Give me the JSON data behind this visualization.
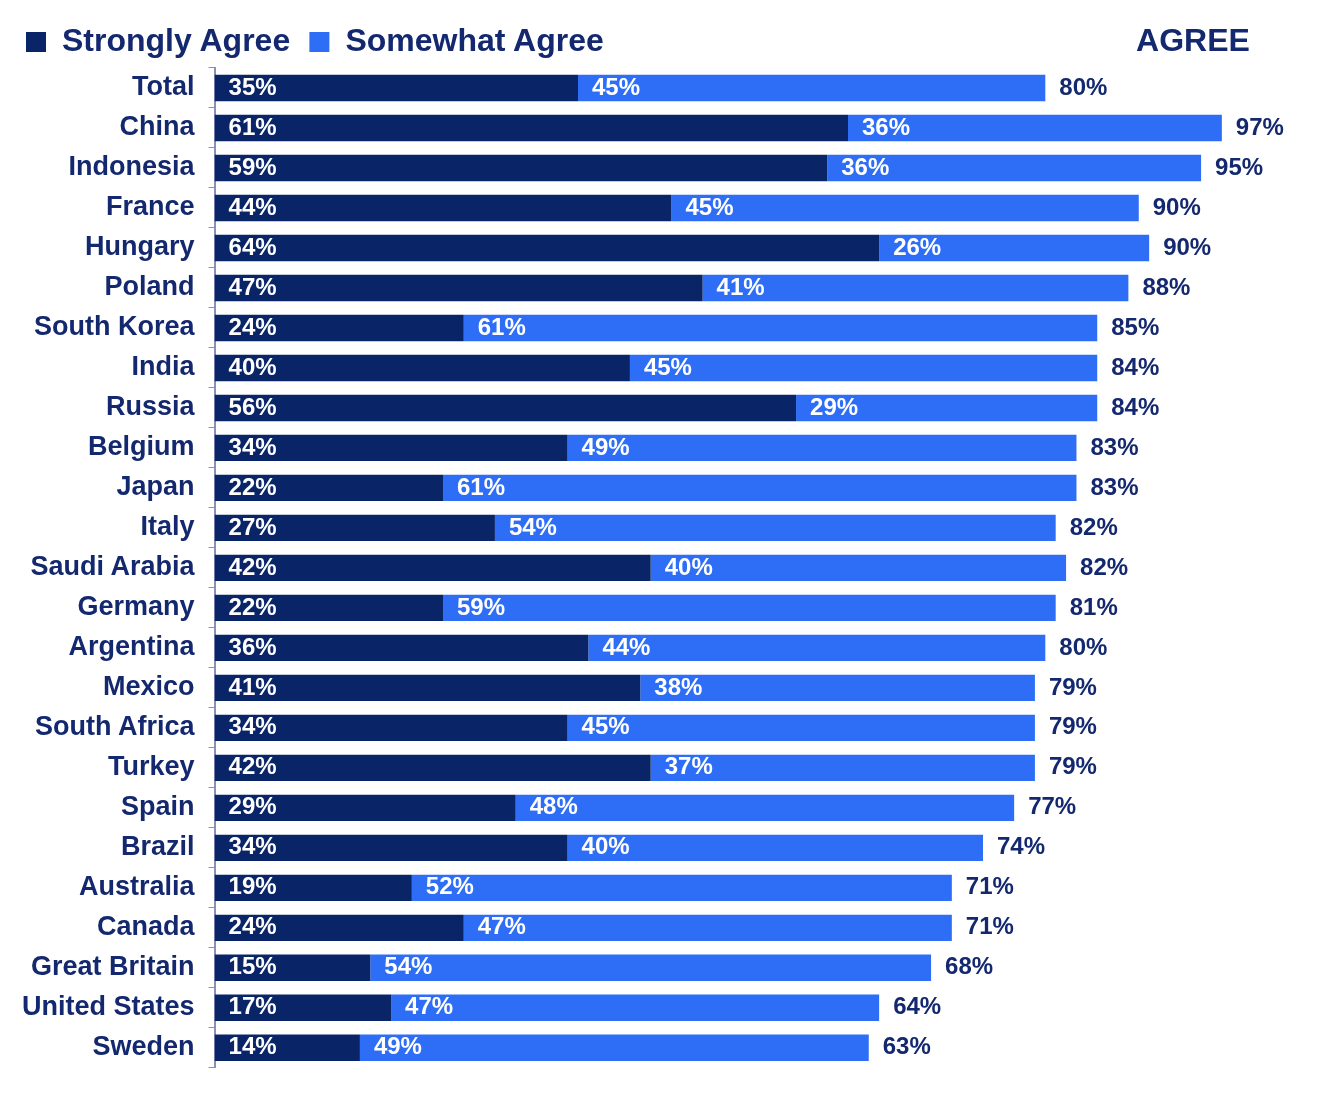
{
  "chart_data": {
    "type": "bar",
    "orientation": "horizontal",
    "stacked": true,
    "legend": "top",
    "legend_title": "AGREE",
    "categories": [
      "Total",
      "China",
      "Indonesia",
      "France",
      "Hungary",
      "Poland",
      "South Korea",
      "India",
      "Russia",
      "Belgium",
      "Japan",
      "Italy",
      "Saudi Arabia",
      "Germany",
      "Argentina",
      "Mexico",
      "South Africa",
      "Turkey",
      "Spain",
      "Brazil",
      "Australia",
      "Canada",
      "Great Britain",
      "United States",
      "Sweden"
    ],
    "series": [
      {
        "name": "Strongly Agree",
        "color": "#0a2468",
        "values": [
          35,
          61,
          59,
          44,
          64,
          47,
          24,
          40,
          56,
          34,
          22,
          27,
          42,
          22,
          36,
          41,
          34,
          42,
          29,
          34,
          19,
          24,
          15,
          17,
          14
        ],
        "value_labels": [
          "35%",
          "61%",
          "59%",
          "44%",
          "64%",
          "47%",
          "24%",
          "40%",
          "56%",
          "34%",
          "22%",
          "27%",
          "42%",
          "22%",
          "36%",
          "41%",
          "34%",
          "42%",
          "29%",
          "34%",
          "19%",
          "24%",
          "15%",
          "17%",
          "14%"
        ]
      },
      {
        "name": "Somewhat Agree",
        "color": "#2e6ef6",
        "values": [
          45,
          36,
          36,
          45,
          26,
          41,
          61,
          45,
          29,
          49,
          61,
          54,
          40,
          59,
          44,
          38,
          45,
          37,
          48,
          40,
          52,
          47,
          54,
          47,
          49
        ],
        "value_labels": [
          "45%",
          "36%",
          "36%",
          "45%",
          "26%",
          "41%",
          "61%",
          "45%",
          "29%",
          "49%",
          "61%",
          "54%",
          "40%",
          "59%",
          "44%",
          "38%",
          "45%",
          "37%",
          "48%",
          "40%",
          "52%",
          "47%",
          "54%",
          "47%",
          "49%"
        ]
      }
    ],
    "totals": [
      "80%",
      "97%",
      "95%",
      "90%",
      "90%",
      "88%",
      "85%",
      "84%",
      "84%",
      "83%",
      "83%",
      "82%",
      "82%",
      "81%",
      "80%",
      "79%",
      "79%",
      "79%",
      "77%",
      "74%",
      "71%",
      "71%",
      "68%",
      "64%",
      "63%"
    ]
  }
}
